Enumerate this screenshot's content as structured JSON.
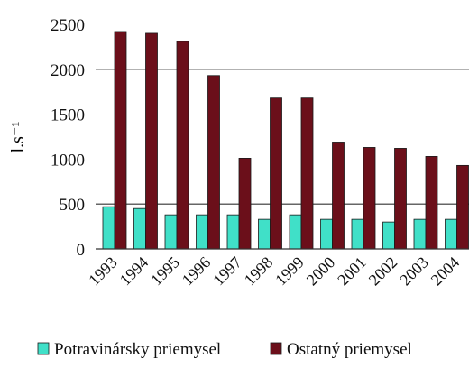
{
  "chart_data": {
    "type": "bar",
    "title": "",
    "xlabel": "",
    "ylabel": "l.s⁻¹",
    "ylim": [
      0,
      2500
    ],
    "yticks": [
      0,
      500,
      1000,
      1500,
      2000,
      2500
    ],
    "grid": true,
    "legend": "bottom",
    "categories": [
      "1993",
      "1994",
      "1995",
      "1996",
      "1997",
      "1998",
      "1999",
      "2000",
      "2001",
      "2002",
      "2003",
      "2004"
    ],
    "series": [
      {
        "name": "Potravinársky priemysel",
        "color": "#40e0c8",
        "values": [
          470,
          450,
          380,
          380,
          380,
          330,
          380,
          330,
          330,
          300,
          330,
          330
        ]
      },
      {
        "name": "Ostatný priemysel",
        "color": "#6b0f1a",
        "values": [
          2420,
          2400,
          2310,
          1930,
          1010,
          1680,
          1680,
          1190,
          1130,
          1120,
          1030,
          930
        ]
      }
    ]
  }
}
